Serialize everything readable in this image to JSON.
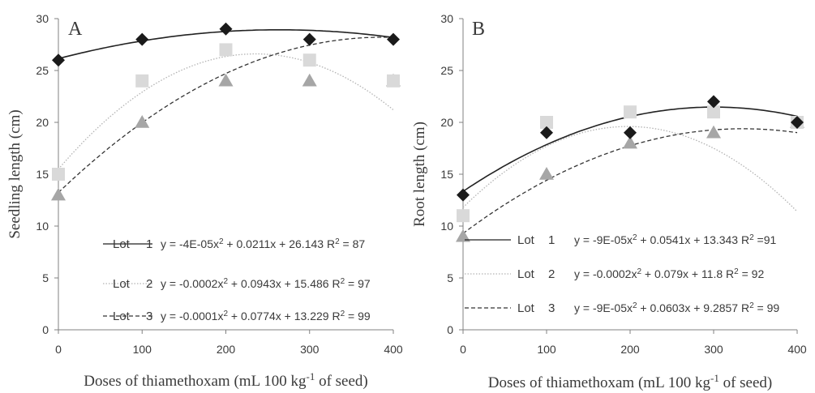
{
  "chart_data": [
    {
      "type": "scatter",
      "panel_label": "A",
      "xlabel": "Doses of thiamethoxam (mL 100 kg⁻¹ of seed)",
      "ylabel": "Seedling length (cm)",
      "x": [
        0,
        100,
        200,
        300,
        400
      ],
      "xlim": [
        0,
        400
      ],
      "ylim": [
        0,
        30
      ],
      "xticks": [
        "0",
        "100",
        "200",
        "300",
        "400"
      ],
      "yticks": [
        "0",
        "5",
        "10",
        "15",
        "20",
        "25",
        "30"
      ],
      "grid": false,
      "legend_position": "bottom",
      "series": [
        {
          "legend": "Lot  1",
          "marker": "diamond",
          "color": "#1a1a1a",
          "line": "solid",
          "line_color": "#222222",
          "values": [
            26,
            28,
            29,
            28,
            28
          ],
          "fit": [
            -4e-05,
            0.0211,
            26.143
          ],
          "equation": "y = -4E-05x² + 0.0211x + 26.143 R² = 87"
        },
        {
          "legend": "Lot  2",
          "marker": "square",
          "color": "#d9d9d9",
          "line": "dotted",
          "line_color": "#b3b3b3",
          "values": [
            15,
            24,
            27,
            26,
            24
          ],
          "fit": [
            -0.0002,
            0.0943,
            15.486
          ],
          "equation": "y = -0.0002x² + 0.0943x + 15.486 R² = 97"
        },
        {
          "legend": "Lot  3",
          "marker": "triangle",
          "color": "#a6a6a6",
          "line": "dashed",
          "line_color": "#333333",
          "values": [
            13,
            20,
            24,
            24,
            24
          ],
          "fit": [
            -0.0001,
            0.0774,
            13.229
          ],
          "equation": "y = -0.0001x² + 0.0774x + 13.229 R² = 99"
        }
      ]
    },
    {
      "type": "scatter",
      "panel_label": "B",
      "xlabel": "Doses of thiamethoxam (mL 100 kg⁻¹ of seed)",
      "ylabel": "Root length (cm)",
      "x": [
        0,
        100,
        200,
        300,
        400
      ],
      "xlim": [
        0,
        400
      ],
      "ylim": [
        0,
        30
      ],
      "xticks": [
        "0",
        "100",
        "200",
        "300",
        "400"
      ],
      "yticks": [
        "0",
        "5",
        "10",
        "15",
        "20",
        "25",
        "30"
      ],
      "grid": false,
      "legend_position": "bottom",
      "series": [
        {
          "legend": "Lot  1",
          "marker": "diamond",
          "color": "#1a1a1a",
          "line": "solid",
          "line_color": "#222222",
          "values": [
            13,
            19,
            19,
            22,
            20
          ],
          "fit": [
            -9e-05,
            0.0541,
            13.343
          ],
          "equation": "y = -9E-05x² + 0.0541x + 13.343 R² =91"
        },
        {
          "legend": "Lot  2",
          "marker": "square",
          "color": "#d9d9d9",
          "line": "dotted",
          "line_color": "#b3b3b3",
          "values": [
            11,
            20,
            21,
            21,
            20
          ],
          "fit": [
            -0.0002,
            0.079,
            11.8
          ],
          "equation": "y = -0.0002x² + 0.079x + 11.8 R² = 92"
        },
        {
          "legend": "Lot  3",
          "marker": "triangle",
          "color": "#a6a6a6",
          "line": "dashed",
          "line_color": "#333333",
          "values": [
            9,
            15,
            18,
            19,
            20
          ],
          "fit": [
            -9e-05,
            0.0603,
            9.2857
          ],
          "equation": "y = -9E-05x² + 0.0603x + 9.2857 R² = 99"
        }
      ]
    }
  ]
}
